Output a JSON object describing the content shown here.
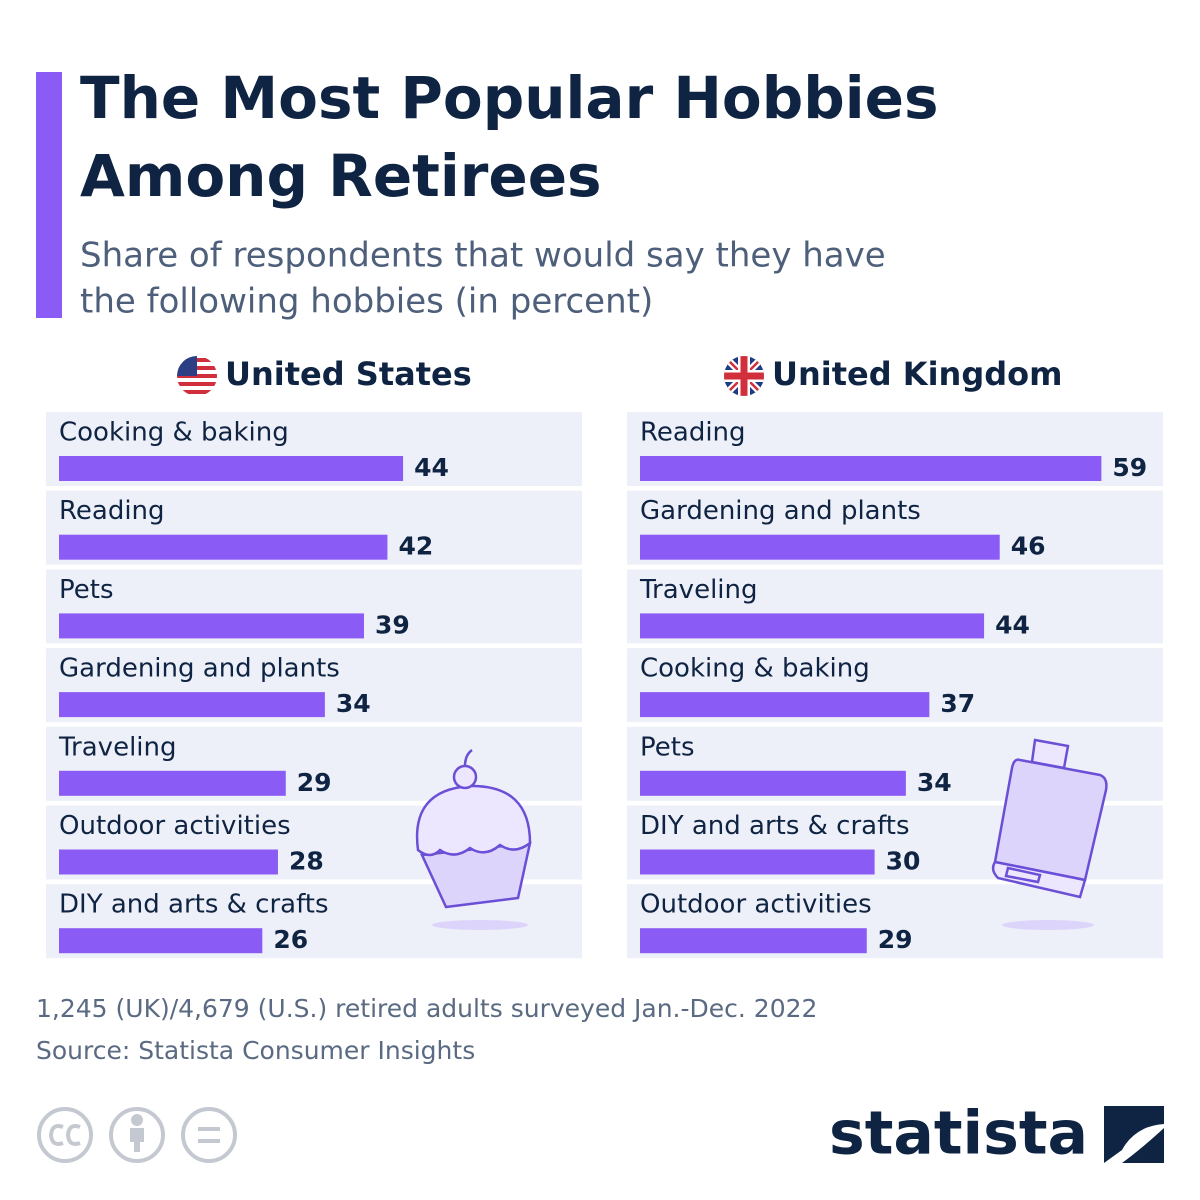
{
  "title": [
    "The Most Popular Hobbies",
    "Among Retirees"
  ],
  "subtitle": [
    "Share of respondents that would say they have",
    "the following hobbies (in percent)"
  ],
  "note": "1,245 (UK)/4,679 (U.S.) retired adults surveyed Jan.-Dec. 2022",
  "source": "Source: Statista Consumer Insights",
  "brand": "statista",
  "chart_data": [
    {
      "type": "bar",
      "title": "United States",
      "color": "#8a5cf5",
      "categories": [
        "Cooking & baking",
        "Reading",
        "Pets",
        "Gardening and plants",
        "Traveling",
        "Outdoor activities",
        "DIY and arts & crafts"
      ],
      "values": [
        44,
        42,
        39,
        34,
        29,
        28,
        26
      ]
    },
    {
      "type": "bar",
      "title": "United Kingdom",
      "color": "#8a5cf5",
      "categories": [
        "Reading",
        "Gardening and plants",
        "Traveling",
        "Cooking & baking",
        "Pets",
        "DIY and arts & crafts",
        "Outdoor activities"
      ],
      "values": [
        59,
        46,
        44,
        37,
        34,
        30,
        29
      ]
    }
  ]
}
